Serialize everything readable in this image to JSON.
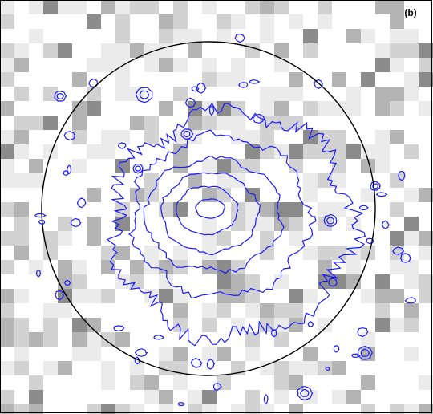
{
  "panel_label": "(b)"
}
